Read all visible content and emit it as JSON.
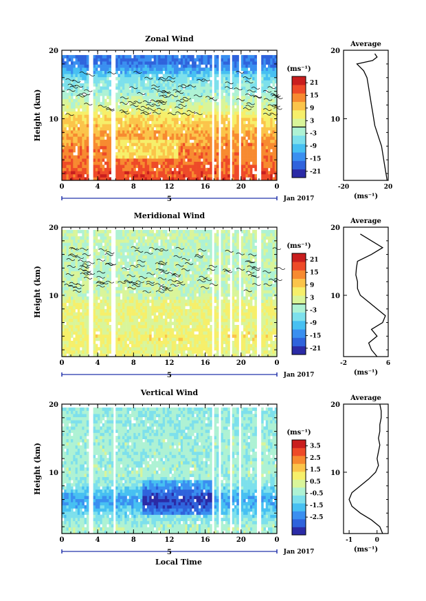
{
  "figure": {
    "xlabel_bottom": "Local Time",
    "colors": {
      "scale": [
        "#2b2ba6",
        "#2f63dc",
        "#3a8ff0",
        "#47c0f2",
        "#7de0ec",
        "#aef2d4",
        "#d9f59a",
        "#f6ef6a",
        "#fbc44a",
        "#f78a30",
        "#ee4a28",
        "#c91e1e"
      ],
      "contour": "#000000",
      "frame": "#000000",
      "date_axis": "#2233aa"
    }
  },
  "chart_data": [
    {
      "type": "heatmap",
      "title": "Zonal Wind",
      "ylabel": "Height (km)",
      "xlim": [
        0,
        24
      ],
      "ylim": [
        1,
        20
      ],
      "x_ticks": [
        "0",
        "4",
        "8",
        "12",
        "16",
        "20",
        "0"
      ],
      "y_ticks": [
        "10",
        "20"
      ],
      "date_labels": {
        "day": "5",
        "month": "Jan 2017"
      },
      "colorbar": {
        "unit": "(ms⁻¹)",
        "ticks": [
          "21",
          "15",
          "9",
          "3",
          "-3",
          "-9",
          "-15",
          "-21"
        ],
        "range": [
          -24,
          24
        ],
        "zero_line": true
      },
      "data_gaps_hours": [
        [
          3.0,
          3.5
        ],
        [
          5.4,
          6.1
        ],
        [
          16.7,
          17.0
        ],
        [
          17.4,
          17.7
        ],
        [
          18.7,
          19.0
        ],
        [
          19.7,
          20.0
        ],
        [
          21.7,
          22.2
        ]
      ],
      "average_profile": {
        "title": "Average",
        "xlim": [
          -20,
          20
        ],
        "x_ticks": [
          "-20",
          "20"
        ],
        "y_ticks": [
          "10",
          "20"
        ],
        "unit": "(ms⁻¹)",
        "height_km": [
          1,
          2,
          3,
          4,
          5,
          6,
          7,
          8,
          9,
          10,
          11,
          12,
          13,
          14,
          15,
          16,
          17,
          18,
          18.5,
          19,
          19.5
        ],
        "value": [
          19,
          18,
          17,
          16,
          15,
          14,
          12,
          10,
          8,
          7,
          6,
          5,
          4,
          3,
          2,
          1,
          -2,
          -8,
          6,
          10,
          8
        ]
      },
      "field": {
        "height_km": [
          2,
          4,
          6,
          8,
          10,
          12,
          14,
          16,
          18
        ],
        "level": [
          18,
          15,
          14,
          11,
          8,
          1,
          -3,
          -6,
          -16
        ]
      }
    },
    {
      "type": "heatmap",
      "title": "Meridional Wind",
      "ylabel": "Height (km)",
      "xlim": [
        0,
        24
      ],
      "ylim": [
        1,
        20
      ],
      "x_ticks": [
        "0",
        "4",
        "8",
        "12",
        "16",
        "20",
        "0"
      ],
      "y_ticks": [
        "10",
        "20"
      ],
      "date_labels": {
        "day": "5",
        "month": "Jan 2017"
      },
      "colorbar": {
        "unit": "(ms⁻¹)",
        "ticks": [
          "21",
          "15",
          "9",
          "3",
          "-3",
          "-9",
          "-15",
          "-21"
        ],
        "range": [
          -24,
          24
        ],
        "zero_line": true
      },
      "data_gaps_hours": [
        [
          3.0,
          3.5
        ],
        [
          5.6,
          6.0
        ],
        [
          16.7,
          17.0
        ],
        [
          17.4,
          17.7
        ],
        [
          18.7,
          19.0
        ],
        [
          19.7,
          20.0
        ],
        [
          21.7,
          22.2
        ]
      ],
      "average_profile": {
        "title": "Average",
        "xlim": [
          -2,
          6
        ],
        "x_ticks": [
          "-2",
          "6"
        ],
        "y_ticks": [
          "10",
          "20"
        ],
        "unit": "(ms⁻¹)",
        "height_km": [
          1,
          2,
          3,
          4,
          5,
          6,
          7,
          8,
          9,
          10,
          11,
          12,
          13,
          14,
          15,
          16,
          17,
          18,
          19
        ],
        "value": [
          4,
          3,
          2.5,
          4,
          3,
          5,
          5.5,
          4,
          2.5,
          1,
          0.5,
          0.5,
          0.2,
          0.3,
          0.5,
          3,
          5,
          3,
          1
        ]
      },
      "field": {
        "height_km": [
          2,
          4,
          6,
          8,
          10,
          12,
          14,
          16,
          18
        ],
        "level": [
          4,
          6,
          3,
          5,
          1,
          0,
          -1,
          -1,
          0
        ]
      }
    },
    {
      "type": "heatmap",
      "title": "Vertical Wind",
      "ylabel": "Height (km)",
      "xlim": [
        0,
        24
      ],
      "ylim": [
        1,
        20
      ],
      "x_ticks": [
        "0",
        "4",
        "8",
        "12",
        "16",
        "20",
        "0"
      ],
      "y_ticks": [
        "10",
        "20"
      ],
      "date_labels": {
        "day": "5",
        "month": "Jan 2017"
      },
      "colorbar": {
        "unit": "(ms⁻¹)",
        "ticks": [
          "3.5",
          "2.5",
          "1.5",
          "0.5",
          "-0.5",
          "-1.5",
          "-2.5"
        ],
        "range": [
          -4,
          4
        ],
        "zero_line": false
      },
      "data_gaps_hours": [
        [
          3.0,
          3.5
        ],
        [
          5.7,
          6.0
        ],
        [
          16.7,
          17.0
        ],
        [
          17.4,
          17.7
        ],
        [
          18.7,
          19.0
        ],
        [
          19.7,
          20.0
        ],
        [
          21.7,
          22.2
        ]
      ],
      "average_profile": {
        "title": "Average",
        "xlim": [
          -1.2,
          0.4
        ],
        "x_ticks": [
          "-1",
          "0"
        ],
        "y_ticks": [
          "10",
          "20"
        ],
        "unit": "(ms⁻¹)",
        "height_km": [
          1,
          2,
          3,
          4,
          5,
          6,
          7,
          8,
          9,
          10,
          11,
          12,
          13,
          14,
          15,
          16,
          17,
          18,
          19,
          20
        ],
        "value": [
          0.2,
          0.1,
          -0.2,
          -0.6,
          -0.9,
          -1.0,
          -0.9,
          -0.6,
          -0.3,
          -0.05,
          0.05,
          0.0,
          0.05,
          0.1,
          0.05,
          0.1,
          0.1,
          0.15,
          0.15,
          0.1
        ]
      },
      "field": {
        "height_km": [
          2,
          4,
          6,
          8,
          10,
          12,
          14,
          16,
          18
        ],
        "level": [
          -0.3,
          -1.2,
          -2.2,
          -0.8,
          -0.3,
          -0.5,
          -0.4,
          -0.5,
          -0.6
        ]
      }
    }
  ]
}
